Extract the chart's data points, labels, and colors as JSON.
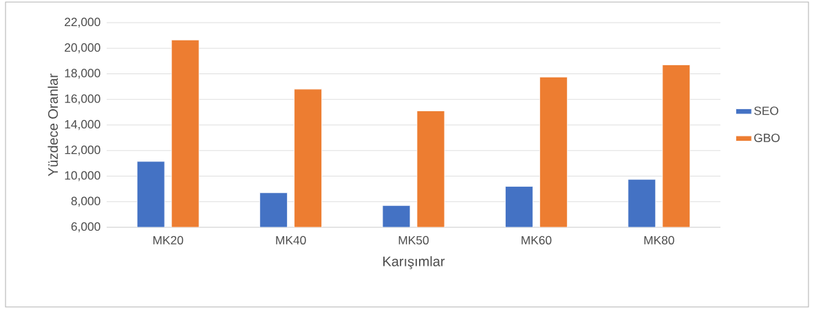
{
  "chart_data": {
    "type": "bar",
    "xlabel": "Karışımlar",
    "ylabel": "Yüzdece Oranlar",
    "categories": [
      "MK20",
      "MK40",
      "MK50",
      "MK60",
      "MK80"
    ],
    "series": [
      {
        "name": "SEO",
        "color": "#4472c4",
        "values": [
          11150,
          8700,
          7700,
          9200,
          9750
        ]
      },
      {
        "name": "GBO",
        "color": "#ed7d31",
        "values": [
          20650,
          16800,
          15100,
          17750,
          18700
        ]
      }
    ],
    "ylim": [
      6000,
      22000
    ],
    "yticks": [
      {
        "value": 6000,
        "label": "6,000"
      },
      {
        "value": 8000,
        "label": "8,000"
      },
      {
        "value": 10000,
        "label": "10,000"
      },
      {
        "value": 12000,
        "label": "12,000"
      },
      {
        "value": 14000,
        "label": "14,000"
      },
      {
        "value": 16000,
        "label": "16,000"
      },
      {
        "value": 18000,
        "label": "18,000"
      },
      {
        "value": 20000,
        "label": "20,000"
      },
      {
        "value": 22000,
        "label": "22,000"
      }
    ],
    "grid": "y",
    "legend": "right"
  }
}
